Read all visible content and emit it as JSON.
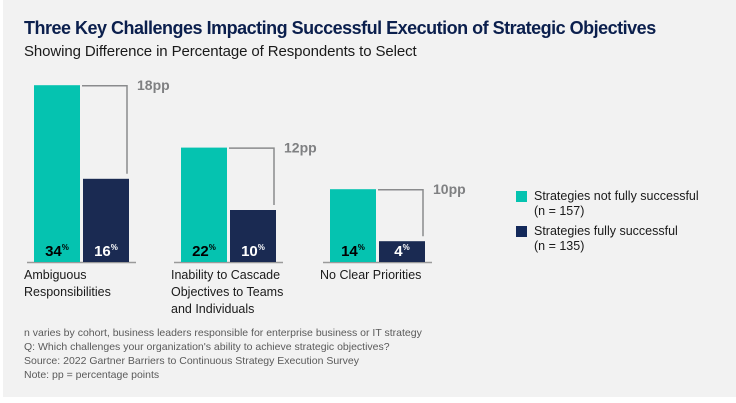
{
  "header": {
    "title": "Three Key Challenges Impacting Successful Execution of Strategic Objectives",
    "subtitle": "Showing Difference in Percentage of Respondents to Select"
  },
  "chart_data": {
    "type": "bar",
    "title": "Three Key Challenges Impacting Successful Execution of Strategic Objectives",
    "subtitle": "Showing Difference in Percentage of Respondents to Select",
    "xlabel": "",
    "ylabel": "",
    "unit": "%",
    "grid": false,
    "legend_position": "right",
    "categories": [
      [
        "Ambiguous",
        "Responsibilities"
      ],
      [
        "Inability to Cascade",
        "Objectives to Teams",
        "and Individuals"
      ],
      [
        "No Clear Priorities"
      ]
    ],
    "series": [
      {
        "name": "Strategies not fully successful",
        "sample": "(n = 157)",
        "color": "#05c3b0",
        "label_color": "#000000",
        "values": [
          34,
          22,
          14
        ]
      },
      {
        "name": "Strategies fully successful",
        "sample": "(n = 135)",
        "color": "#1a2a52",
        "label_color": "#ffffff",
        "values": [
          16,
          10,
          4
        ]
      }
    ],
    "differences": [
      "18pp",
      "12pp",
      "10pp"
    ],
    "bracket_color": "#8a8b8d",
    "baseline_color": "#9a9a9a"
  },
  "legend": {
    "items": [
      {
        "label": "Strategies not fully successful",
        "sample": "(n = 157)",
        "color": "#05c3b0"
      },
      {
        "label": "Strategies fully successful",
        "sample": "(n = 135)",
        "color": "#13295a"
      }
    ]
  },
  "footnotes": [
    "n varies by cohort, business leaders responsible for enterprise business or IT strategy",
    "Q: Which challenges your organization's ability to achieve strategic objectives?",
    "Source: 2022 Gartner Barriers to Continuous Strategy Execution Survey",
    "Note: pp = percentage points"
  ]
}
